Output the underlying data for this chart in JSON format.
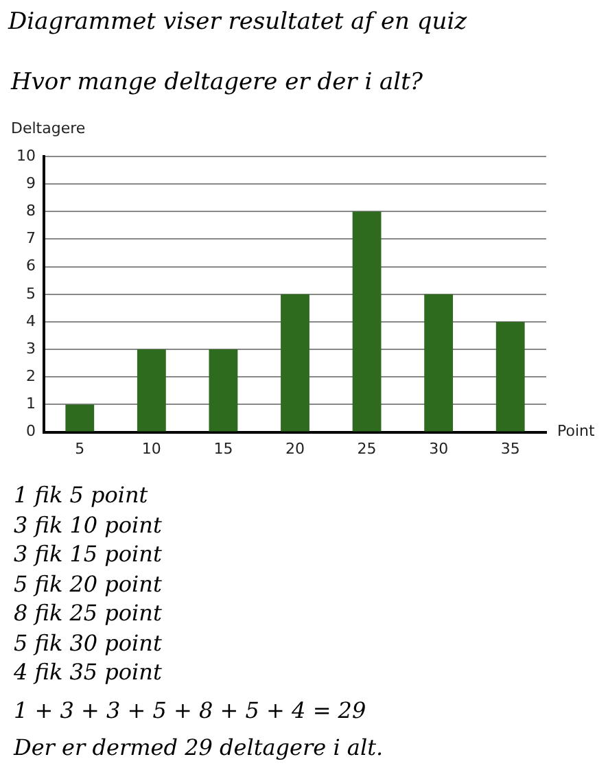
{
  "chart_data": {
    "type": "bar",
    "title": "Diagrammet viser resultatet af en quiz",
    "subtitle": "Hvor mange deltagere er der i alt?",
    "xlabel": "Point",
    "ylabel": "Deltagere",
    "categories": [
      "5",
      "10",
      "15",
      "20",
      "25",
      "30",
      "35"
    ],
    "values": [
      1,
      3,
      3,
      5,
      8,
      5,
      4
    ],
    "color": "#2e6b1f",
    "ylim": [
      0,
      10
    ],
    "yticks": [
      0,
      1,
      2,
      3,
      4,
      5,
      6,
      7,
      8,
      9,
      10
    ],
    "grid": "y",
    "annotations": [
      "1 fik 5 point",
      "3 fik 10 point",
      "3 fik 15 point",
      "5 fik 20 point",
      "8 fik 25 point",
      "5 fik 30 point",
      "4 fik 35 point",
      "1 + 3 + 3 + 5 + 8 + 5 + 4 = 29",
      "Der er dermed 29 deltagere i alt."
    ]
  }
}
